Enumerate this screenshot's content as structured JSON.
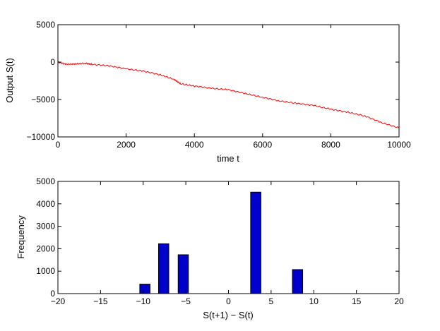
{
  "chart_data": [
    {
      "type": "line",
      "title": "",
      "xlabel": "time  t",
      "ylabel": "Output S(t)",
      "xlim": [
        0,
        10000
      ],
      "ylim": [
        -10000,
        5000
      ],
      "xticks": [
        0,
        2000,
        4000,
        6000,
        8000,
        10000
      ],
      "yticks": [
        5000,
        0,
        -5000,
        -10000
      ],
      "xtick_labels": [
        "0",
        "2000",
        "4000",
        "6000",
        "8000",
        "10000"
      ],
      "ytick_labels": [
        "5000",
        "0",
        "−5000",
        "−10000"
      ],
      "grid": false,
      "series": [
        {
          "color": "#ff0000",
          "x": [
            0,
            250,
            500,
            800,
            1000,
            1500,
            2000,
            2500,
            3000,
            3400,
            3600,
            4000,
            4500,
            5000,
            5500,
            6000,
            6500,
            7000,
            7500,
            8000,
            8500,
            9000,
            9500,
            10000
          ],
          "y": [
            0,
            -300,
            -250,
            -150,
            -300,
            -500,
            -900,
            -1200,
            -1700,
            -2300,
            -2900,
            -3200,
            -3500,
            -3700,
            -4200,
            -4700,
            -5200,
            -5500,
            -5800,
            -6300,
            -6700,
            -7200,
            -8100,
            -8800
          ]
        }
      ]
    },
    {
      "type": "bar",
      "title": "",
      "xlabel": "S(t+1) − S(t)",
      "ylabel": "Frequency",
      "xlim": [
        -20,
        20
      ],
      "ylim": [
        0,
        5000
      ],
      "xticks": [
        -20,
        -15,
        -10,
        -5,
        0,
        5,
        10,
        15,
        20
      ],
      "yticks": [
        5000,
        4000,
        3000,
        2000,
        1000,
        0
      ],
      "xtick_labels": [
        "−20",
        "−15",
        "−10",
        "−5",
        "0",
        "5",
        "10",
        "15",
        "20"
      ],
      "ytick_labels": [
        "5000",
        "4000",
        "3000",
        "2000",
        "1000",
        "0"
      ],
      "grid": false,
      "bar_color": "#0000cc",
      "bin_width": 1.2,
      "bars": [
        {
          "x": -9.8,
          "value": 420
        },
        {
          "x": -7.6,
          "value": 2220
        },
        {
          "x": -5.3,
          "value": 1730
        },
        {
          "x": 3.2,
          "value": 4520
        },
        {
          "x": 8.1,
          "value": 1070
        }
      ]
    }
  ]
}
